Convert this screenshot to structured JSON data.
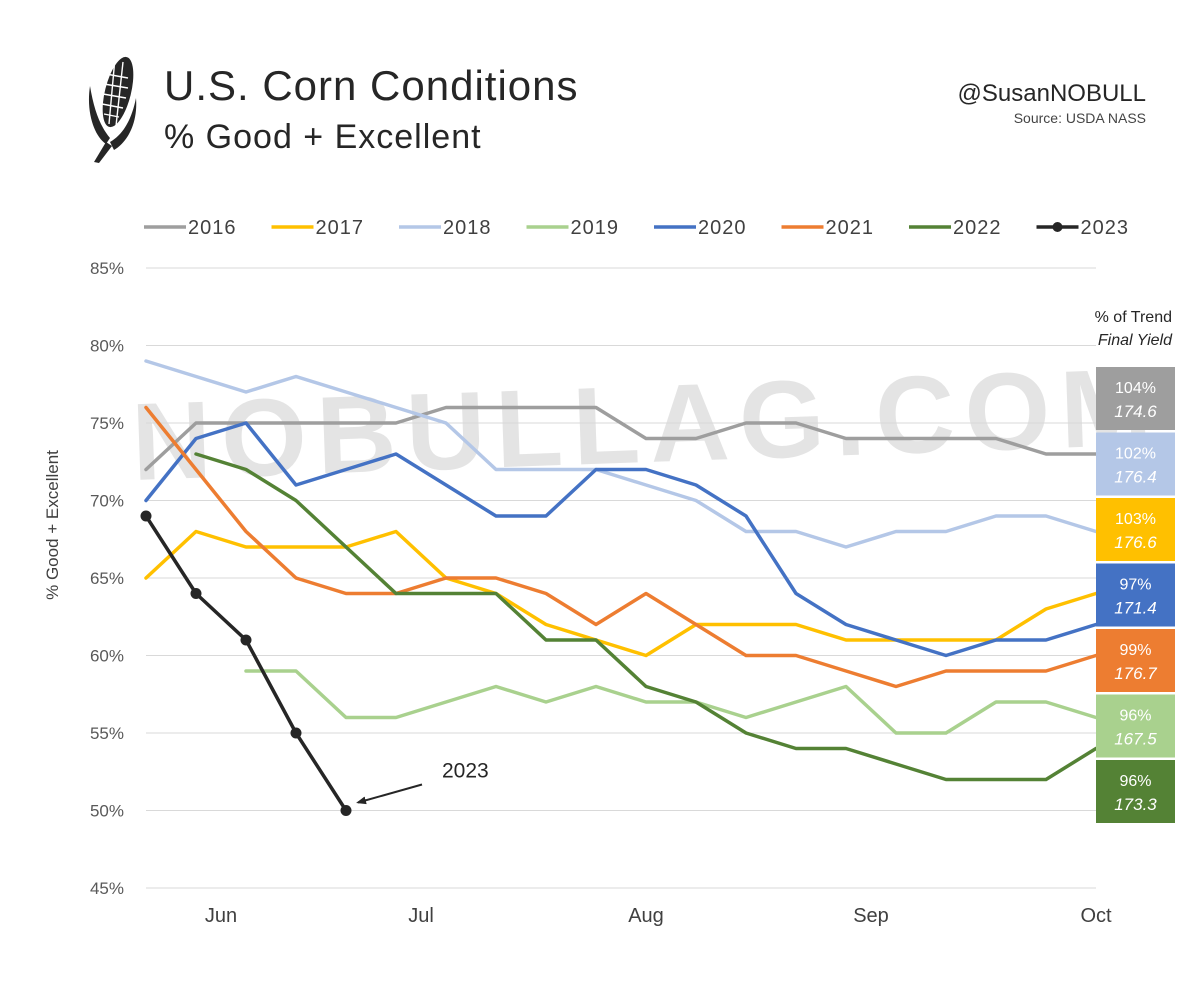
{
  "header": {
    "title": "U.S. Corn Conditions",
    "subtitle": "% Good + Excellent",
    "handle": "@SusanNOBULL",
    "source": "Source: USDA NASS",
    "watermark": "NOBULLAG.COM"
  },
  "trend_box": {
    "heading": "% of Trend",
    "subheading": "Final Yield",
    "entries": [
      {
        "year": "2016",
        "pct": "104%",
        "yield": "174.6",
        "color": "#9e9e9e"
      },
      {
        "year": "2018",
        "pct": "102%",
        "yield": "176.4",
        "color": "#b4c7e7"
      },
      {
        "year": "2017",
        "pct": "103%",
        "yield": "176.6",
        "color": "#ffc000"
      },
      {
        "year": "2020",
        "pct": "97%",
        "yield": "171.4",
        "color": "#4472c4"
      },
      {
        "year": "2021",
        "pct": "99%",
        "yield": "176.7",
        "color": "#ed7d31"
      },
      {
        "year": "2019",
        "pct": "96%",
        "yield": "167.5",
        "color": "#a9d18e"
      },
      {
        "year": "2022",
        "pct": "96%",
        "yield": "173.3",
        "color": "#548235"
      }
    ]
  },
  "chart_data": {
    "type": "line",
    "title": "U.S. Corn Conditions",
    "subtitle": "% Good + Excellent",
    "ylabel": "% Good + Excellent",
    "xlabel": "",
    "ylim": [
      45,
      85
    ],
    "yticks": [
      "45%",
      "50%",
      "55%",
      "60%",
      "65%",
      "70%",
      "75%",
      "80%",
      "85%"
    ],
    "ytick_values": [
      45,
      50,
      55,
      60,
      65,
      70,
      75,
      80,
      85
    ],
    "x_weeks": 20,
    "month_labels": [
      {
        "label": "Jun",
        "week": 1.5
      },
      {
        "label": "Jul",
        "week": 5.5
      },
      {
        "label": "Aug",
        "week": 10
      },
      {
        "label": "Sep",
        "week": 14.5
      },
      {
        "label": "Oct",
        "week": 19
      }
    ],
    "series": [
      {
        "name": "2016",
        "color": "#9e9e9e",
        "start_week": 0,
        "values": [
          72,
          75,
          75,
          75,
          75,
          75,
          76,
          76,
          76,
          76,
          74,
          74,
          75,
          75,
          74,
          74,
          74,
          74,
          73,
          73
        ]
      },
      {
        "name": "2017",
        "color": "#ffc000",
        "start_week": 0,
        "values": [
          65,
          68,
          67,
          67,
          67,
          68,
          65,
          64,
          62,
          61,
          60,
          62,
          62,
          62,
          61,
          61,
          61,
          61,
          63,
          64
        ]
      },
      {
        "name": "2018",
        "color": "#b4c7e7",
        "start_week": 0,
        "values": [
          79,
          78,
          77,
          78,
          77,
          76,
          75,
          72,
          72,
          72,
          71,
          70,
          68,
          68,
          67,
          68,
          68,
          69,
          69,
          68
        ]
      },
      {
        "name": "2019",
        "color": "#a9d18e",
        "start_week": 2,
        "values": [
          59,
          59,
          56,
          56,
          57,
          58,
          57,
          58,
          57,
          57,
          56,
          57,
          58,
          55,
          55,
          57,
          57,
          56
        ]
      },
      {
        "name": "2020",
        "color": "#4472c4",
        "start_week": 0,
        "values": [
          70,
          74,
          75,
          71,
          72,
          73,
          71,
          69,
          69,
          72,
          72,
          71,
          69,
          64,
          62,
          61,
          60,
          61,
          61,
          62
        ]
      },
      {
        "name": "2021",
        "color": "#ed7d31",
        "start_week": 0,
        "values": [
          76,
          72,
          68,
          65,
          64,
          64,
          65,
          65,
          64,
          62,
          64,
          62,
          60,
          60,
          59,
          58,
          59,
          59,
          59,
          60
        ]
      },
      {
        "name": "2022",
        "color": "#548235",
        "start_week": 1,
        "values": [
          73,
          72,
          70,
          67,
          64,
          64,
          64,
          61,
          61,
          58,
          57,
          55,
          54,
          54,
          53,
          52,
          52,
          52,
          54
        ]
      },
      {
        "name": "2023",
        "color": "#262626",
        "start_week": 0,
        "markers": true,
        "values": [
          69,
          64,
          61,
          55,
          50
        ]
      }
    ],
    "annotations": [
      {
        "text": "2023",
        "target_series": "2023",
        "target_week": 4,
        "target_value": 50
      }
    ],
    "legend": {
      "position": "top",
      "entries": [
        "2016",
        "2017",
        "2018",
        "2019",
        "2020",
        "2021",
        "2022",
        "2023"
      ]
    },
    "grid": true
  }
}
